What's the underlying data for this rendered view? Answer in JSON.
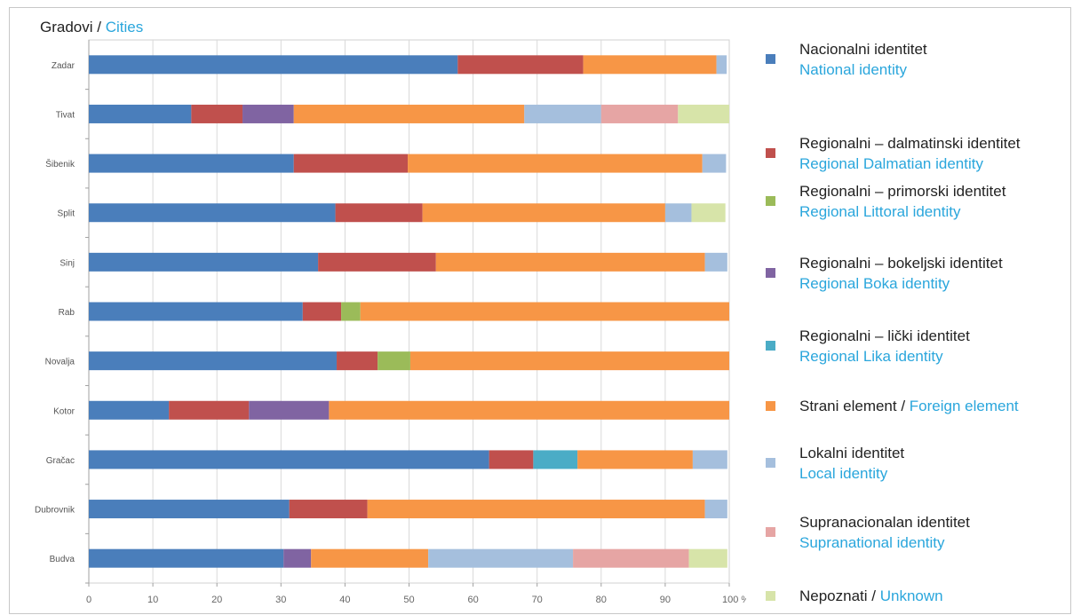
{
  "title": {
    "hr": "Gradovi / ",
    "en": "Cities"
  },
  "chart_data": {
    "type": "bar",
    "orientation": "horizontal",
    "stacked": true,
    "title": "Gradovi / Cities",
    "xlabel": "",
    "ylabel": "",
    "xlim": [
      0,
      100
    ],
    "x_ticks": [
      "0",
      "10",
      "20",
      "30",
      "40",
      "50",
      "60",
      "70",
      "80",
      "90",
      "100 %"
    ],
    "grid": true,
    "legend_position": "right",
    "categories": [
      "Zadar",
      "Tivat",
      "Šibenik",
      "Split",
      "Sinj",
      "Rab",
      "Novalja",
      "Kotor",
      "Gračac",
      "Dubrovnik",
      "Budva"
    ],
    "series": [
      {
        "name": "Nacionalni identitet / National identity",
        "color": "#4a7ebb",
        "values": [
          57.6,
          16,
          32,
          38.5,
          35.8,
          33.4,
          38.7,
          12.5,
          62.5,
          31.3,
          30.4
        ]
      },
      {
        "name": "Regionalni – dalmatinski identitet / Regional Dalmatian identity",
        "color": "#c0504d",
        "values": [
          19.6,
          8,
          17.8,
          13.6,
          18.4,
          6,
          6.4,
          12.5,
          6.9,
          12.2,
          0
        ]
      },
      {
        "name": "Regionalni – primorski identitet / Regional Littoral identity",
        "color": "#9bbb59",
        "values": [
          0,
          0,
          0,
          0,
          0,
          3,
          5.1,
          0,
          0,
          0,
          0
        ]
      },
      {
        "name": "Regionalni – bokeljski identitet / Regional Boka identity",
        "color": "#8064a2",
        "values": [
          0,
          8,
          0,
          0,
          0,
          0,
          0,
          12.5,
          0,
          0,
          4.3
        ]
      },
      {
        "name": "Regionalni – lički identitet / Regional Lika identity",
        "color": "#4bacc6",
        "values": [
          0,
          0,
          0,
          0,
          0,
          0,
          0,
          0,
          6.9,
          0,
          0
        ]
      },
      {
        "name": "Strani element / Foreign element",
        "color": "#f79646",
        "values": [
          20.8,
          36,
          46,
          37.9,
          42,
          57.6,
          49.8,
          62.5,
          18,
          52.7,
          18.3
        ]
      },
      {
        "name": "Lokalni identitet / Local identity",
        "color": "#a5bfdd",
        "values": [
          1.6,
          12,
          3.7,
          4.1,
          3.5,
          0,
          0,
          0,
          5.4,
          3.5,
          22.6
        ]
      },
      {
        "name": "Supranacionalan identitet / Supranational identity",
        "color": "#e6a5a4",
        "values": [
          0,
          12,
          0,
          0,
          0,
          0,
          0,
          0,
          0,
          0,
          18.1
        ]
      },
      {
        "name": "Nepoznati / Unknown",
        "color": "#d7e4a9",
        "values": [
          0,
          8,
          0,
          5.3,
          0,
          0,
          0,
          0,
          0,
          0,
          6
        ]
      }
    ]
  },
  "legend": [
    {
      "hr": "Nacionalni identitet",
      "en": "National identity",
      "color": "#4a7ebb",
      "layout": "two-line"
    },
    {
      "hr": "Regionalni – dalmatinski identitet",
      "en": "Regional Dalmatian identity",
      "color": "#c0504d",
      "layout": "two-line"
    },
    {
      "hr": "Regionalni – primorski identitet",
      "en": "Regional Littoral identity",
      "color": "#9bbb59",
      "layout": "two-line"
    },
    {
      "hr": "Regionalni – bokeljski identitet",
      "en": "Regional Boka identity",
      "color": "#8064a2",
      "layout": "two-line"
    },
    {
      "hr": "Regionalni – lički identitet",
      "en": "Regional Lika identity",
      "color": "#4bacc6",
      "layout": "two-line"
    },
    {
      "hr": "Strani element",
      "en": "Foreign element",
      "color": "#f79646",
      "layout": "inline"
    },
    {
      "hr": "Lokalni identitet",
      "en": "Local identity",
      "color": "#a5bfdd",
      "layout": "two-line"
    },
    {
      "hr": "Supranacionalan identitet",
      "en": "Supranational identity",
      "color": "#e6a5a4",
      "layout": "two-line"
    },
    {
      "hr": "Nepoznati",
      "en": "Unknown",
      "color": "#d7e4a9",
      "layout": "inline"
    }
  ]
}
